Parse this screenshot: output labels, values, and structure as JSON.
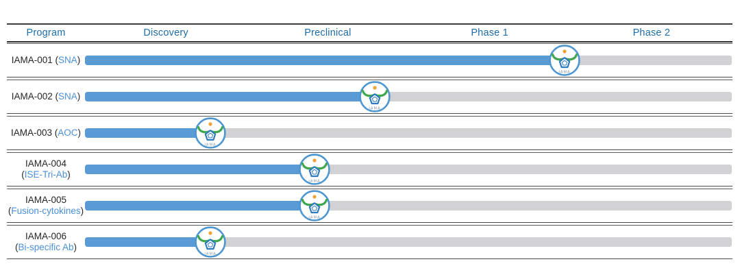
{
  "header": {
    "program_label": "Program",
    "phases": [
      "Discovery",
      "Preclinical",
      "Phase 1",
      "Phase 2"
    ]
  },
  "chart_data": {
    "type": "bar",
    "subtype": "drug-pipeline-progress",
    "title": "",
    "columns": [
      "Program",
      "Discovery",
      "Preclinical",
      "Phase 1",
      "Phase 2"
    ],
    "x_axis_pct_range": [
      0,
      100
    ],
    "phase_boundaries_pct": [
      0,
      25,
      50,
      75,
      100
    ],
    "grid": false,
    "programs": [
      {
        "name": "IAMA-001",
        "modality": "SNA",
        "label_lines": 1,
        "stage_reached": "Phase 1",
        "progress_pct": 74.1
      },
      {
        "name": "IAMA-002",
        "modality": "SNA",
        "label_lines": 1,
        "stage_reached": "Preclinical",
        "progress_pct": 44.8
      },
      {
        "name": "IAMA-003",
        "modality": "AOC",
        "label_lines": 1,
        "stage_reached": "Discovery",
        "progress_pct": 19.4
      },
      {
        "name": "IAMA-004",
        "modality": "ISE-Tri-Ab",
        "label_lines": 2,
        "stage_reached": "Preclinical",
        "progress_pct": 35.5
      },
      {
        "name": "IAMA-005",
        "modality": "Fusion-cytokines",
        "label_lines": 2,
        "stage_reached": "Preclinical",
        "progress_pct": 35.5
      },
      {
        "name": "IAMA-006",
        "modality": "Bi-specific Ab",
        "label_lines": 2,
        "stage_reached": "Discovery",
        "progress_pct": 19.4
      }
    ],
    "badge": {
      "text": "IAMA"
    },
    "colors": {
      "bar_fill": "#5b9bd5",
      "bar_track": "#d2d2d4",
      "header_text": "#1f6da8",
      "modality_text": "#4a90d9",
      "program_text": "#262626",
      "badge_ring": "#4f97d0",
      "logo_green": "#3fa74e",
      "logo_orange": "#f0a232",
      "logo_pentagon": "#2e7bbf"
    }
  }
}
